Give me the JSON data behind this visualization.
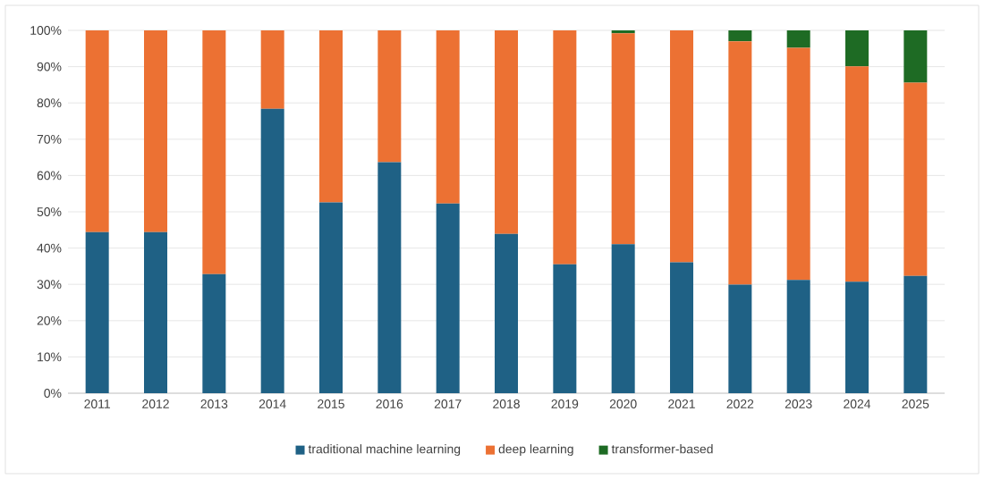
{
  "chart_data": {
    "type": "bar",
    "stacked": true,
    "categories": [
      "2011",
      "2012",
      "2013",
      "2014",
      "2015",
      "2016",
      "2017",
      "2018",
      "2019",
      "2020",
      "2021",
      "2022",
      "2023",
      "2024",
      "2025"
    ],
    "series": [
      {
        "name": "traditional machine learning",
        "color": "#1f6185",
        "values": [
          44.4,
          44.4,
          32.8,
          78.4,
          52.6,
          63.7,
          52.3,
          43.9,
          35.5,
          41.1,
          36.1,
          29.9,
          31.2,
          30.7,
          32.3
        ]
      },
      {
        "name": "deep learning",
        "color": "#ec7133",
        "values": [
          55.6,
          55.6,
          67.2,
          21.6,
          47.4,
          36.3,
          47.7,
          56.1,
          64.5,
          58.1,
          63.9,
          67.1,
          64.0,
          59.4,
          53.3
        ]
      },
      {
        "name": "transformer-based",
        "color": "#1e6b24",
        "values": [
          0,
          0,
          0,
          0,
          0,
          0,
          0,
          0,
          0,
          0.8,
          0,
          3.0,
          4.8,
          9.9,
          14.4
        ]
      }
    ],
    "ylim": [
      0,
      100
    ],
    "yticks": [
      {
        "value": 0,
        "label": "0%"
      },
      {
        "value": 10,
        "label": "10%"
      },
      {
        "value": 20,
        "label": "20%"
      },
      {
        "value": 30,
        "label": "30%"
      },
      {
        "value": 40,
        "label": "40%"
      },
      {
        "value": 50,
        "label": "50%"
      },
      {
        "value": 60,
        "label": "60%"
      },
      {
        "value": 70,
        "label": "70%"
      },
      {
        "value": 80,
        "label": "80%"
      },
      {
        "value": 90,
        "label": "90%"
      },
      {
        "value": 100,
        "label": "100%"
      }
    ],
    "grid": "y",
    "legend": "bottom"
  }
}
